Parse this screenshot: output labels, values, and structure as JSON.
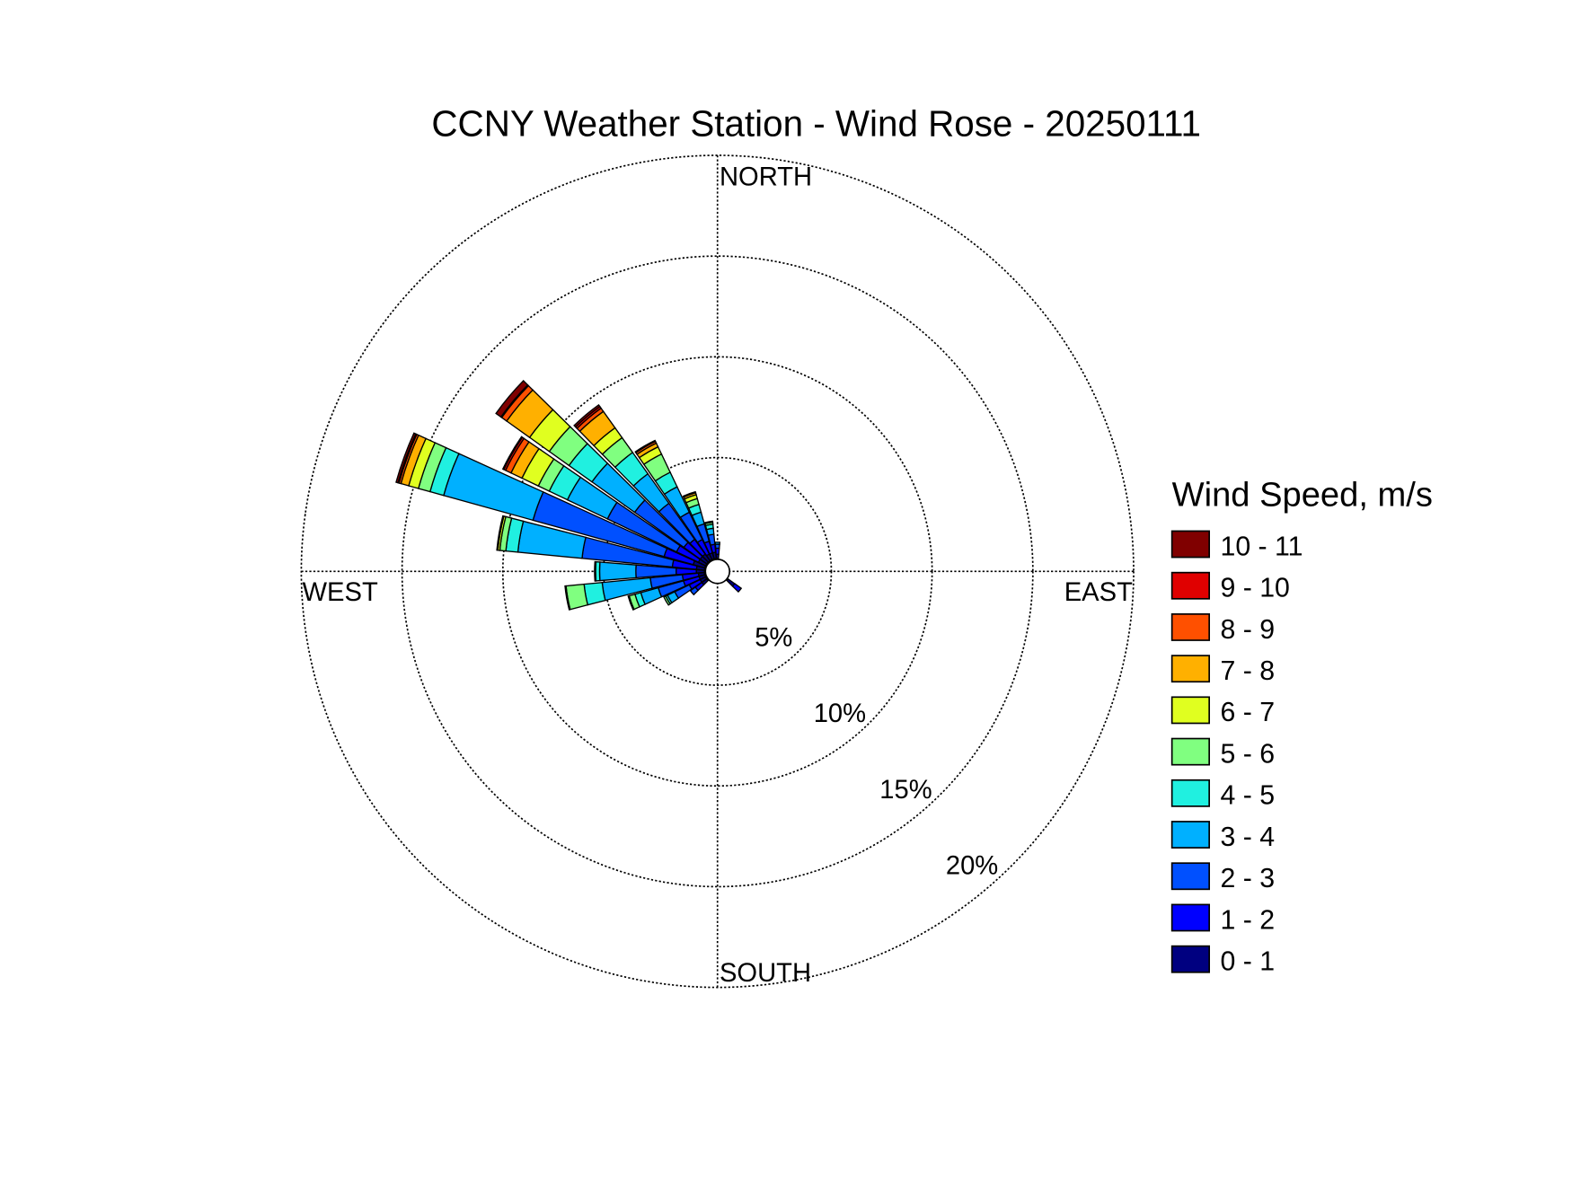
{
  "chart_data": {
    "type": "windrose",
    "title": "CCNY Weather Station - Wind Rose - 20250111",
    "direction_labels": {
      "north": "NORTH",
      "east": "EAST",
      "south": "SOUTH",
      "west": "WEST"
    },
    "x": [
      0,
      130,
      230,
      240,
      250,
      260,
      270,
      280,
      290,
      300,
      310,
      320,
      330,
      340,
      350
    ],
    "rlim": [
      0,
      20
    ],
    "rticks": [
      {
        "value": 5,
        "label": "5%"
      },
      {
        "value": 10,
        "label": "10%"
      },
      {
        "value": 15,
        "label": "15%"
      },
      {
        "value": 20,
        "label": "20%"
      }
    ],
    "grid": true,
    "legend_title": "Wind Speed, m/s",
    "legend_position": "right",
    "series": [
      {
        "name": "0 - 1",
        "color": "#000080",
        "values": [
          0.2,
          0.4,
          0.3,
          0.3,
          0.3,
          0.3,
          0.4,
          0.4,
          0.6,
          0.4,
          0.4,
          0.4,
          0.3,
          0.3,
          0.3
        ]
      },
      {
        "name": "1 - 2",
        "color": "#0000ff",
        "values": [
          0.3,
          0.4,
          0.4,
          0.6,
          0.8,
          0.8,
          1.0,
          1.2,
          1.5,
          1.2,
          1.0,
          0.9,
          0.8,
          0.6,
          0.4
        ]
      },
      {
        "name": "2 - 3",
        "color": "#0050ff",
        "values": [
          0.2,
          0,
          0.3,
          0.8,
          1.3,
          1.6,
          2.0,
          4.5,
          6.75,
          3.8,
          3.0,
          2.2,
          1.5,
          0.9,
          0.5
        ]
      },
      {
        "name": "3 - 4",
        "color": "#00b0ff",
        "values": [
          0.1,
          0,
          0,
          0.4,
          0.9,
          2.4,
          1.8,
          3.2,
          4.6,
          2.2,
          2.6,
          1.8,
          1.4,
          0.6,
          0.3
        ]
      },
      {
        "name": "4 - 5",
        "color": "#20f0e0",
        "values": [
          0,
          0,
          0,
          0.1,
          0.3,
          0.9,
          0.2,
          0.6,
          0.7,
          1.0,
          1.4,
          1.3,
          0.8,
          0.4,
          0.2
        ]
      },
      {
        "name": "5 - 6",
        "color": "#80ff80",
        "values": [
          0,
          0,
          0,
          0.1,
          0.3,
          0.9,
          0.05,
          0.3,
          0.6,
          0.6,
          1.2,
          0.9,
          1.0,
          0.3,
          0.1
        ]
      },
      {
        "name": "6 - 7",
        "color": "#e0ff20",
        "values": [
          0,
          0,
          0,
          0,
          0.05,
          0.05,
          0,
          0.1,
          0.5,
          0.9,
          1.2,
          0.6,
          0.4,
          0.2,
          0.05
        ]
      },
      {
        "name": "7 - 8",
        "color": "#ffb000",
        "values": [
          0,
          0,
          0,
          0,
          0,
          0,
          0,
          0,
          0.4,
          0.6,
          1.4,
          1.0,
          0.2,
          0.1,
          0
        ]
      },
      {
        "name": "8 - 9",
        "color": "#ff5000",
        "values": [
          0,
          0,
          0,
          0,
          0,
          0,
          0,
          0,
          0.1,
          0.3,
          0.3,
          0.2,
          0.1,
          0.05,
          0
        ]
      },
      {
        "name": "9 - 10",
        "color": "#e00000",
        "values": [
          0,
          0,
          0,
          0,
          0,
          0,
          0,
          0,
          0.05,
          0.1,
          0.05,
          0.1,
          0,
          0,
          0
        ]
      },
      {
        "name": "10 - 11",
        "color": "#800000",
        "values": [
          0,
          0,
          0,
          0,
          0,
          0,
          0,
          0.05,
          0.1,
          0.05,
          0.3,
          0.1,
          0.05,
          0,
          0
        ]
      }
    ]
  }
}
